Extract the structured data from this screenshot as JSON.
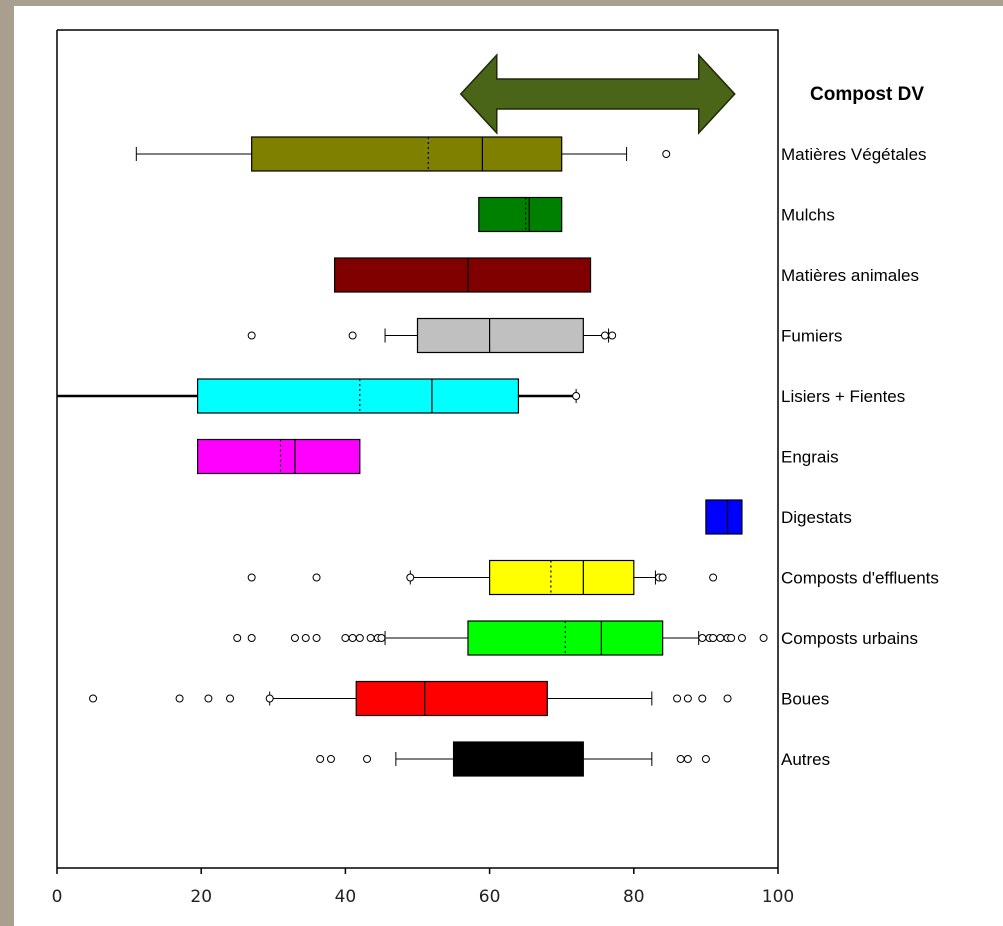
{
  "chart_data": {
    "type": "boxplot",
    "orientation": "horizontal",
    "xlim": [
      0,
      100
    ],
    "x_ticks": [
      0,
      20,
      40,
      60,
      80,
      100
    ],
    "x_tick_labels": [
      "0",
      "20",
      "40",
      "60",
      "80",
      "100"
    ],
    "annotation": {
      "label": "Compost DV",
      "range": [
        56,
        94
      ],
      "color": "#4a6418"
    },
    "series": [
      {
        "category": "Matières Végétales",
        "color": "#808000",
        "wmin": 11,
        "q1": 27,
        "median": 59,
        "mean": 51.5,
        "q3": 70,
        "wmax": 79,
        "outliers": [
          84.5
        ]
      },
      {
        "category": "Mulchs",
        "color": "#008000",
        "q1": 58.5,
        "median": 65.5,
        "mean": 65,
        "q3": 70
      },
      {
        "category": "Matières animales",
        "color": "#800000",
        "q1": 38.5,
        "median": 57,
        "mean": 57,
        "q3": 74
      },
      {
        "category": "Fumiers",
        "color": "#c0c0c0",
        "wmin": 45.5,
        "q1": 50,
        "median": 60,
        "q3": 73,
        "wmax": 76.5,
        "outliers": [
          27,
          41,
          76,
          77
        ]
      },
      {
        "category": "Lisiers + Fientes",
        "color": "#00ffff",
        "wmin": 0,
        "q1": 19.5,
        "median": 52,
        "mean": 42,
        "q3": 64,
        "wmax": 72,
        "outliers": [
          72
        ]
      },
      {
        "category": "Engrais",
        "color": "#ff00ff",
        "q1": 19.5,
        "median": 33,
        "mean": 31,
        "q3": 42
      },
      {
        "category": "Digestats",
        "color": "#0000ff",
        "q1": 90,
        "median": 93,
        "q3": 95
      },
      {
        "category": "Composts d'effluents",
        "color": "#ffff00",
        "wmin": 49,
        "q1": 60,
        "median": 73,
        "mean": 68.5,
        "q3": 80,
        "wmax": 83,
        "outliers": [
          27,
          36,
          49,
          83.5,
          84,
          91
        ]
      },
      {
        "category": "Composts urbains",
        "color": "#00ff00",
        "wmin": 45.5,
        "q1": 57,
        "median": 75.5,
        "mean": 70.5,
        "q3": 84,
        "wmax": 89,
        "outliers": [
          25,
          27,
          33,
          34.5,
          36,
          40,
          41,
          42,
          43.5,
          44.5,
          45,
          89.5,
          90.5,
          91,
          92,
          93,
          93.5,
          95,
          98
        ]
      },
      {
        "category": "Boues",
        "color": "#ff0000",
        "wmin": 29.5,
        "q1": 41.5,
        "median": 51,
        "q3": 68,
        "wmax": 82.5,
        "outliers": [
          5,
          17,
          21,
          24,
          29.5,
          86,
          87.5,
          89.5,
          93
        ]
      },
      {
        "category": "Autres",
        "color": "#000000",
        "wmin": 47,
        "q1": 55,
        "median": 65,
        "q3": 73,
        "wmax": 82.5,
        "outliers": [
          36.5,
          38,
          43,
          86.5,
          87.5,
          90
        ]
      }
    ]
  }
}
